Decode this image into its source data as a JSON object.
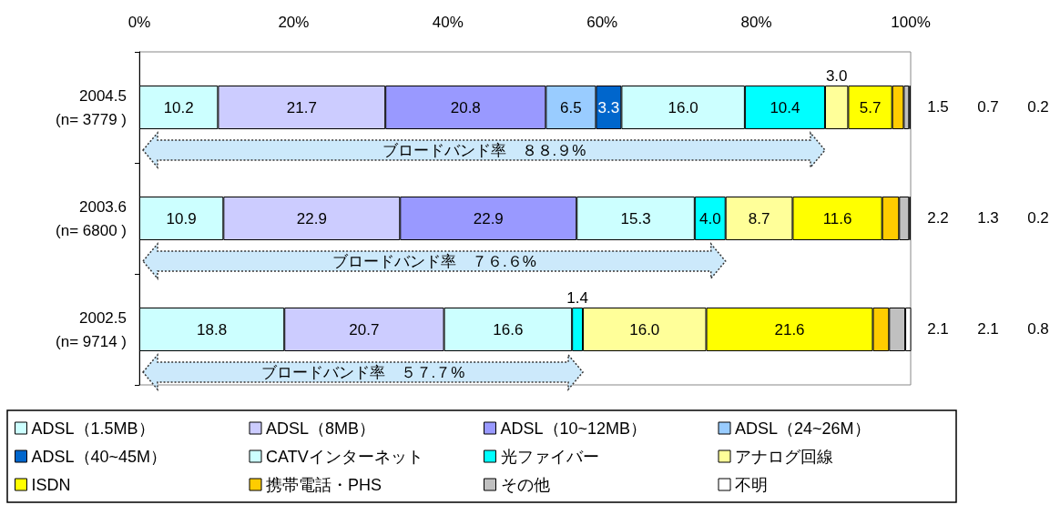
{
  "chart_data": {
    "type": "bar",
    "orientation": "horizontal",
    "stacked": true,
    "categories": [
      "2004.5\n(n= 3779 )",
      "2003.6\n(n= 6800 )",
      "2002.5\n(n= 9714 )"
    ],
    "xlim": [
      0,
      100
    ],
    "xticks": [
      {
        "value": 0,
        "label": "0%"
      },
      {
        "value": 20,
        "label": "20%"
      },
      {
        "value": 40,
        "label": "40%"
      },
      {
        "value": 60,
        "label": "60%"
      },
      {
        "value": 80,
        "label": "80%"
      },
      {
        "value": 100,
        "label": "100%"
      }
    ],
    "grid": false,
    "legend": "bottom",
    "series": [
      {
        "name": "ADSL（1.5MB）",
        "color": "#ccffff",
        "values": [
          10.2,
          10.9,
          18.8
        ],
        "value_labels": [
          "10.2",
          "10.9",
          "18.8"
        ]
      },
      {
        "name": "ADSL（8MB）",
        "color": "#ccccff",
        "values": [
          21.7,
          22.9,
          20.7
        ],
        "value_labels": [
          "21.7",
          "22.9",
          "20.7"
        ]
      },
      {
        "name": "ADSL（10~12MB）",
        "color": "#9999ff",
        "values": [
          20.8,
          22.9,
          null
        ],
        "value_labels": [
          "20.8",
          "22.9",
          null
        ]
      },
      {
        "name": "ADSL（24~26M）",
        "color": "#99ccff",
        "values": [
          6.5,
          null,
          null
        ],
        "value_labels": [
          "6.5",
          null,
          null
        ]
      },
      {
        "name": "ADSL（40~45M）",
        "color": "#0066cc",
        "values": [
          3.3,
          null,
          null
        ],
        "value_labels": [
          "3.3",
          null,
          null
        ]
      },
      {
        "name": "CATVインターネット",
        "color": "#ccffff",
        "values": [
          16.0,
          15.3,
          16.6
        ],
        "value_labels": [
          "16.0",
          "15.3",
          "16.6"
        ]
      },
      {
        "name": "光ファイバー",
        "color": "#00ffff",
        "values": [
          10.4,
          4.0,
          1.4
        ],
        "value_labels": [
          "10.4",
          "4.0",
          "1.4"
        ]
      },
      {
        "name": "アナログ回線",
        "color": "#ffff99",
        "values": [
          3.0,
          8.7,
          16.0
        ],
        "value_labels": [
          "3.0",
          "8.7",
          "16.0"
        ]
      },
      {
        "name": "ISDN",
        "color": "#ffff00",
        "values": [
          5.7,
          11.6,
          21.6
        ],
        "value_labels": [
          "5.7",
          "11.6",
          "21.6"
        ]
      },
      {
        "name": "携帯電話・PHS",
        "color": "#ffcc00",
        "values": [
          1.5,
          2.2,
          2.1
        ],
        "value_labels": [
          "1.5",
          "2.2",
          "2.1"
        ]
      },
      {
        "name": "その他",
        "color": "#c0c0c0",
        "values": [
          0.7,
          1.3,
          2.1
        ],
        "value_labels": [
          "0.7",
          "1.3",
          "2.1"
        ]
      },
      {
        "name": "不明",
        "color": "#ffffff",
        "values": [
          0.2,
          0.2,
          0.8
        ],
        "value_labels": [
          "0.2",
          "0.2",
          "0.8"
        ]
      }
    ],
    "annotations": [
      "ブロードバンド率　８８.９%",
      "ブロードバンド率　７６.６%",
      "ブロードバンド率　５７.７%"
    ]
  }
}
